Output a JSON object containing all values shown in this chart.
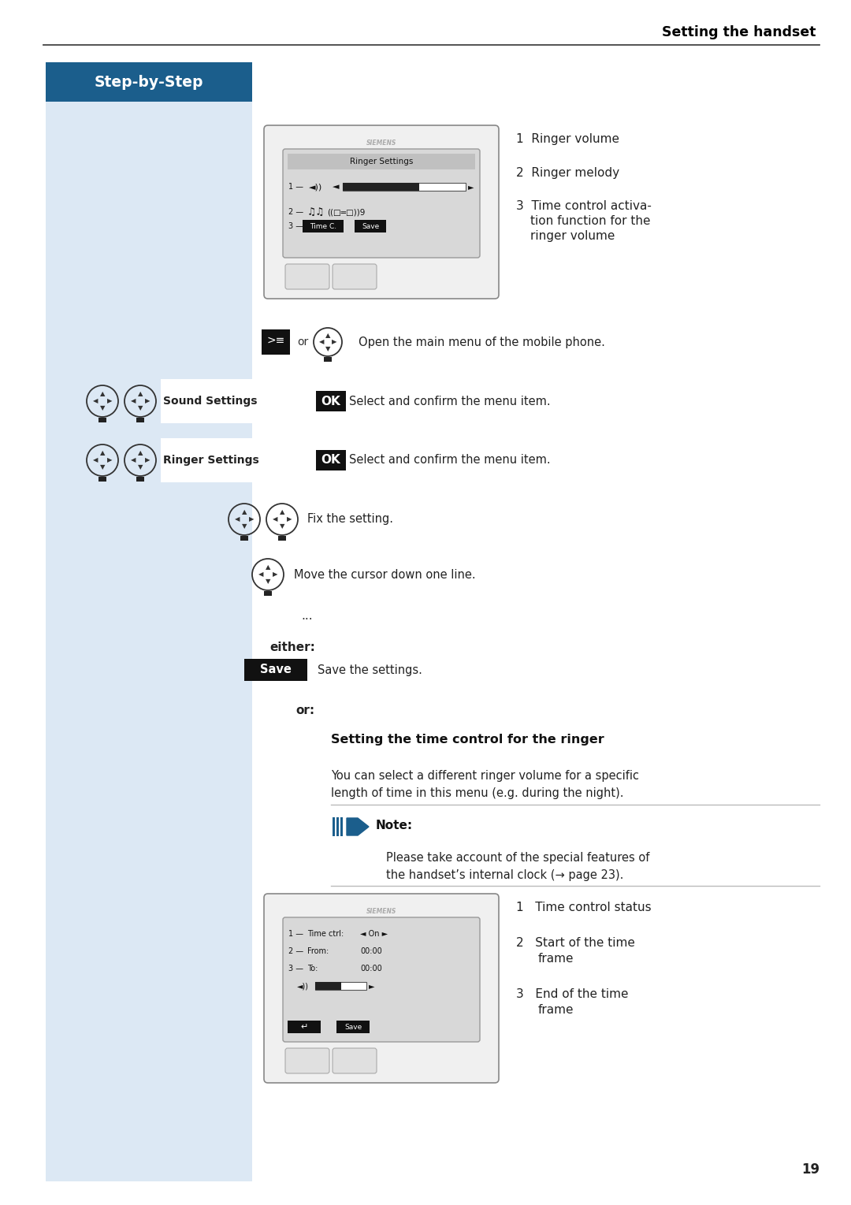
{
  "page_title": "Setting the handset",
  "step_by_step_label": "Step-by-Step",
  "step_by_step_bg": "#1b5e8c",
  "left_panel_bg": "#dce8f4",
  "page_bg": "#ffffff",
  "page_number": "19",
  "screen1_title": "Ringer Settings",
  "screen1_notes": [
    [
      "1",
      "Ringer volume"
    ],
    [
      "2",
      "Ringer melody"
    ],
    [
      "3",
      "Time control activa-\ntion function for the\nringer volume"
    ]
  ],
  "either_text": "either:",
  "save_btn_text": "Save",
  "save_instruction": "Save the settings.",
  "or_text": "or:",
  "section_title": "Setting the time control for the ringer",
  "section_desc1": "You can select a different ringer volume for a specific",
  "section_desc2": "length of time in this menu (e.g. during the night).",
  "note_title": "Note:",
  "note_line1": "Please take account of the special features of",
  "note_line2": "the handset’s internal clock (→ page 23).",
  "note_arrow_color": "#1b5e8c",
  "screen2_notes": [
    [
      "1",
      "Time control status"
    ],
    [
      "2",
      "Start of the time\nframe"
    ],
    [
      "3",
      "End of the time\nframe"
    ]
  ],
  "instr1": "Open the main menu of the mobile phone.",
  "instr2": "Select and confirm the menu item.",
  "instr3": "Select and confirm the menu item.",
  "instr4": "Fix the setting.",
  "instr5": "Move the cursor down one line.",
  "sound_settings": "Sound Settings",
  "ringer_settings": "Ringer Settings"
}
